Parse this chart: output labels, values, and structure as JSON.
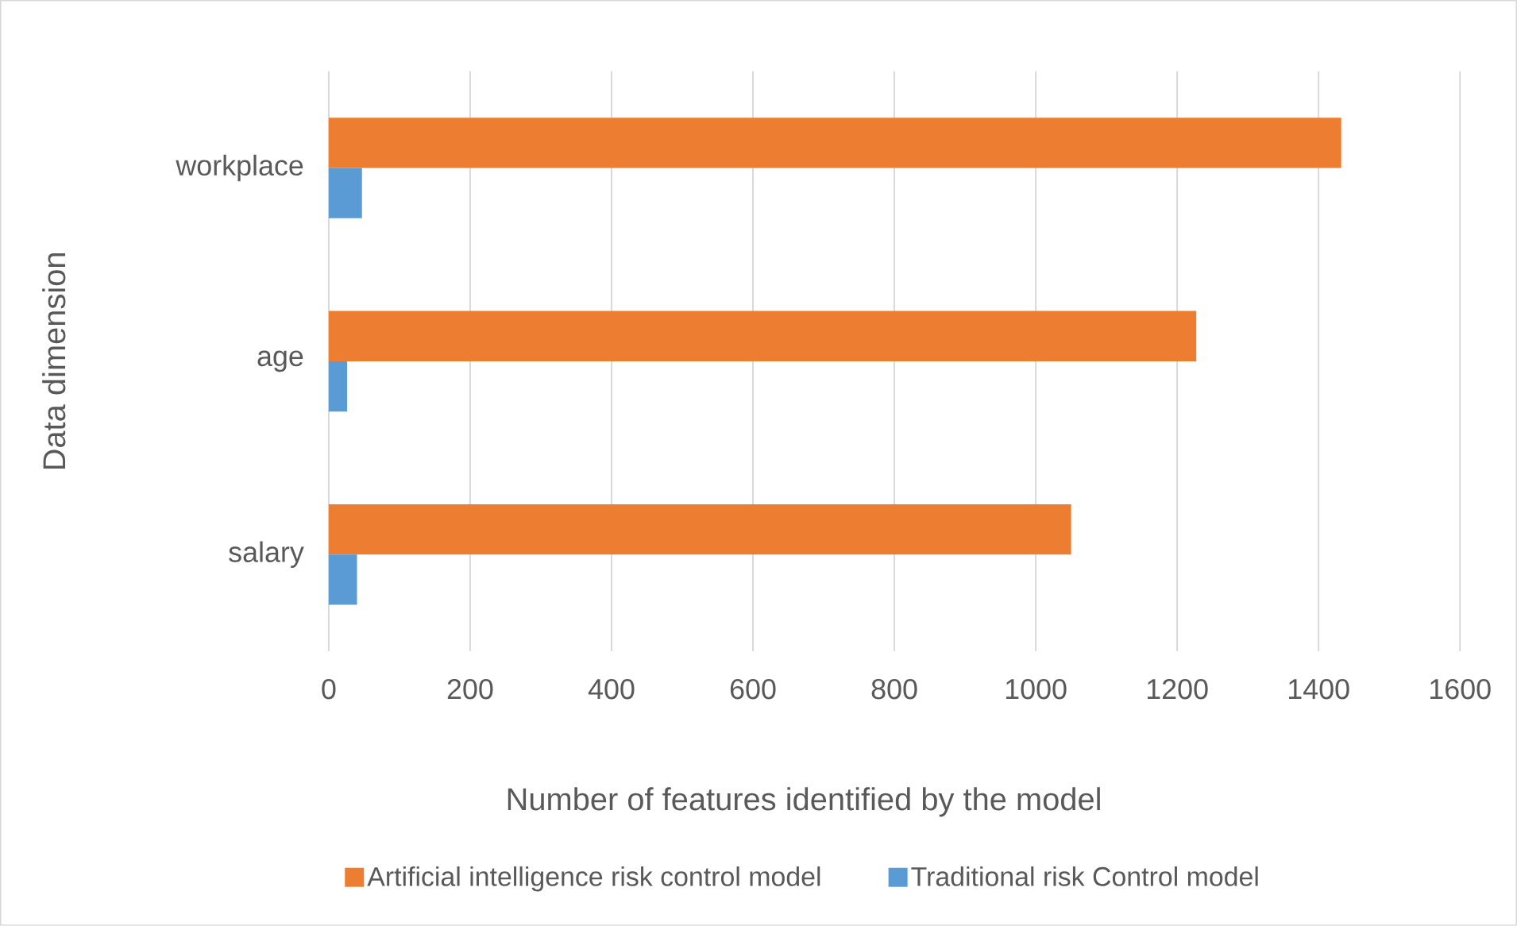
{
  "chart_data": {
    "type": "bar",
    "orientation": "horizontal",
    "xlabel": "Number of features identified by the model",
    "ylabel": "Data dimension",
    "categories": [
      "workplace",
      "age",
      "salary"
    ],
    "series": [
      {
        "name": "Artificial intelligence risk control model",
        "color": "#ed7d31",
        "values": [
          1432,
          1227,
          1050
        ]
      },
      {
        "name": "Traditional risk Control model",
        "color": "#5b9bd5",
        "values": [
          47,
          26,
          40
        ]
      }
    ],
    "xlim": [
      0,
      1600
    ],
    "xticks": [
      0,
      200,
      400,
      600,
      800,
      1000,
      1200,
      1400,
      1600
    ],
    "grid": "x",
    "legend": "bottom"
  }
}
